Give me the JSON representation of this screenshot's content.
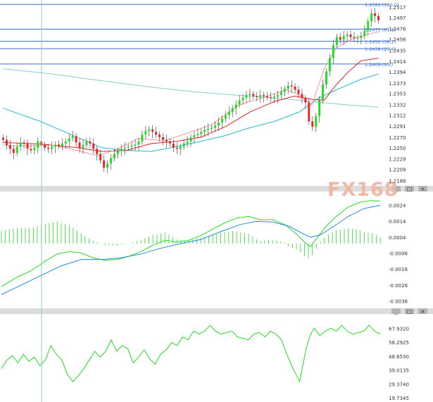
{
  "watermark": "FX168",
  "panel_buttons": [
    "_",
    "□",
    "×"
  ],
  "colors": {
    "bull": "#22dd22",
    "bear": "#ee2222",
    "fib": "#3a6fd0",
    "ma_slow": "#22bbcc",
    "ma_mid": "#dd2222",
    "ma_fast": "#ee9999",
    "ma_long": "#88cccc",
    "macd": "#22dd22",
    "signal": "#2288dd",
    "rsi": "#22dd22",
    "axis_text": "#333333",
    "separator": "#c8c8c8",
    "vline": "#88cccc"
  },
  "chart_data": [
    {
      "type": "candlestick",
      "title": "",
      "y_ticks": [
        "1.2517",
        "1.2497",
        "1.2476",
        "1.2456",
        "1.2435",
        "1.2414",
        "1.2394",
        "1.2373",
        "1.2353",
        "1.2332",
        "1.2312",
        "1.2291",
        "1.2270",
        "1.2250",
        "1.2229",
        "1.2209",
        "1.2188"
      ],
      "ylim": [
        1.2183,
        1.2525
      ],
      "fib_levels": [
        {
          "label": "1.2522 (100.0)",
          "value": 1.2522
        },
        {
          "label": "1.2475 (61.8)",
          "value": 1.2475
        },
        {
          "label": "1.2452 (38.2)",
          "value": 1.2452
        },
        {
          "label": "1.2438 (23.6)",
          "value": 1.2438
        },
        {
          "label": "1.2409 (0%)",
          "value": 1.2409
        }
      ],
      "moving_averages": [
        {
          "key": "ma_long",
          "values": [
            [
              0,
              1.24
            ],
            [
              20,
              1.239
            ],
            [
              40,
              1.2377
            ],
            [
              60,
              1.2365
            ],
            [
              80,
              1.2355
            ],
            [
              100,
              1.2348
            ],
            [
              120,
              1.234
            ],
            [
              140,
              1.2331
            ],
            [
              152,
              1.2327
            ]
          ]
        },
        {
          "key": "ma_slow",
          "values": [
            [
              0,
              1.2325
            ],
            [
              15,
              1.23
            ],
            [
              30,
              1.227
            ],
            [
              40,
              1.225
            ],
            [
              50,
              1.2245
            ],
            [
              60,
              1.2243
            ],
            [
              70,
              1.2252
            ],
            [
              80,
              1.2262
            ],
            [
              90,
              1.2273
            ],
            [
              100,
              1.2288
            ],
            [
              110,
              1.23
            ],
            [
              120,
              1.2318
            ],
            [
              128,
              1.2345
            ],
            [
              135,
              1.236
            ],
            [
              145,
              1.238
            ],
            [
              152,
              1.239
            ]
          ]
        },
        {
          "key": "ma_mid",
          "values": [
            [
              0,
              1.226
            ],
            [
              15,
              1.2257
            ],
            [
              30,
              1.225
            ],
            [
              40,
              1.2243
            ],
            [
              50,
              1.2245
            ],
            [
              60,
              1.2258
            ],
            [
              70,
              1.2262
            ],
            [
              80,
              1.227
            ],
            [
              90,
              1.229
            ],
            [
              100,
              1.2318
            ],
            [
              110,
              1.2338
            ],
            [
              118,
              1.2348
            ],
            [
              125,
              1.2342
            ],
            [
              130,
              1.234
            ],
            [
              135,
              1.237
            ],
            [
              140,
              1.2395
            ],
            [
              145,
              1.2415
            ],
            [
              152,
              1.242
            ]
          ]
        },
        {
          "key": "ma_fast",
          "values": [
            [
              0,
              1.2255
            ],
            [
              10,
              1.2253
            ],
            [
              20,
              1.2255
            ],
            [
              30,
              1.2245
            ],
            [
              38,
              1.2235
            ],
            [
              45,
              1.2245
            ],
            [
              55,
              1.2268
            ],
            [
              65,
              1.2263
            ],
            [
              75,
              1.2278
            ],
            [
              85,
              1.2295
            ],
            [
              95,
              1.233
            ],
            [
              105,
              1.2345
            ],
            [
              115,
              1.236
            ],
            [
              120,
              1.235
            ],
            [
              125,
              1.233
            ],
            [
              130,
              1.24
            ],
            [
              135,
              1.244
            ],
            [
              142,
              1.2458
            ],
            [
              152,
              1.247
            ]
          ]
        }
      ],
      "candles_close": [
        1.2265,
        1.2255,
        1.2248,
        1.224,
        1.2252,
        1.226,
        1.2258,
        1.2248,
        1.2245,
        1.225,
        1.2262,
        1.2255,
        1.225,
        1.2248,
        1.2252,
        1.2256,
        1.2253,
        1.2258,
        1.2262,
        1.2268,
        1.2272,
        1.226,
        1.225,
        1.2255,
        1.2262,
        1.2258,
        1.2248,
        1.2238,
        1.2226,
        1.2212,
        1.222,
        1.223,
        1.2238,
        1.2244,
        1.2248,
        1.225,
        1.2252,
        1.2254,
        1.2256,
        1.2262,
        1.2275,
        1.2282,
        1.2285,
        1.228,
        1.2275,
        1.227,
        1.2265,
        1.2262,
        1.2258,
        1.225,
        1.2248,
        1.2252,
        1.2258,
        1.2262,
        1.227,
        1.2274,
        1.2276,
        1.228,
        1.2284,
        1.2286,
        1.2288,
        1.2292,
        1.2298,
        1.2305,
        1.2312,
        1.2318,
        1.2325,
        1.2332,
        1.234,
        1.2345,
        1.235,
        1.2352,
        1.2348,
        1.2346,
        1.235,
        1.2348,
        1.2346,
        1.2345,
        1.2347,
        1.235,
        1.2356,
        1.2362,
        1.2368,
        1.2366,
        1.236,
        1.2352,
        1.2344,
        1.2336,
        1.23,
        1.229,
        1.231,
        1.234,
        1.237,
        1.2395,
        1.242,
        1.2445,
        1.246,
        1.2455,
        1.2462,
        1.2465,
        1.246,
        1.2458,
        1.2458,
        1.2462,
        1.2472,
        1.249,
        1.2505,
        1.25,
        1.2492
      ]
    },
    {
      "type": "line",
      "indicator": "macd",
      "y_ticks": [
        "0.0024",
        "0.0014",
        "0.0004",
        "-0.0006",
        "-0.0016",
        "-0.0026",
        "-0.0036"
      ],
      "ylim": [
        -0.0038,
        0.003
      ],
      "series": [
        {
          "key": "macd",
          "values": [
            [
              0,
              -0.0027
            ],
            [
              8,
              -0.0021
            ],
            [
              15,
              -0.0017
            ],
            [
              22,
              -0.0011
            ],
            [
              28,
              -0.00065
            ],
            [
              34,
              -0.0005
            ],
            [
              40,
              -0.0006
            ],
            [
              46,
              -0.0009
            ],
            [
              52,
              -0.00105
            ],
            [
              58,
              -0.001
            ],
            [
              64,
              -0.0008
            ],
            [
              70,
              -0.0005
            ],
            [
              76,
              -0.0001
            ],
            [
              82,
              0.0002
            ],
            [
              88,
              0.0001
            ],
            [
              94,
              0.0002
            ],
            [
              100,
              0.0005
            ],
            [
              106,
              0.0009
            ],
            [
              112,
              0.0013
            ],
            [
              118,
              0.0016
            ],
            [
              124,
              0.0017
            ],
            [
              130,
              0.0015
            ],
            [
              136,
              0.0015
            ],
            [
              142,
              0.0012
            ],
            [
              148,
              0.0006
            ],
            [
              152,
              0.0001
            ],
            [
              155,
              -0.0002
            ],
            [
              158,
              0.0003
            ],
            [
              163,
              0.0011
            ],
            [
              168,
              0.0017
            ],
            [
              174,
              0.0023
            ],
            [
              180,
              0.0026
            ],
            [
              186,
              0.0027
            ],
            [
              190,
              0.00265
            ]
          ]
        },
        {
          "key": "signal",
          "values": [
            [
              0,
              -0.0032
            ],
            [
              10,
              -0.0026
            ],
            [
              20,
              -0.002
            ],
            [
              30,
              -0.0014
            ],
            [
              40,
              -0.001
            ],
            [
              50,
              -0.001
            ],
            [
              60,
              -0.0009
            ],
            [
              70,
              -0.00065
            ],
            [
              80,
              -0.0003
            ],
            [
              90,
              0.0
            ],
            [
              100,
              0.00025
            ],
            [
              110,
              0.00075
            ],
            [
              120,
              0.0012
            ],
            [
              128,
              0.0014
            ],
            [
              136,
              0.00135
            ],
            [
              144,
              0.0011
            ],
            [
              150,
              0.0007
            ],
            [
              155,
              0.0004
            ],
            [
              160,
              0.00055
            ],
            [
              167,
              0.0011
            ],
            [
              174,
              0.0017
            ],
            [
              182,
              0.0022
            ],
            [
              190,
              0.0024
            ]
          ]
        }
      ]
    },
    {
      "type": "line",
      "indicator": "rsi",
      "y_ticks": [
        "67.9320",
        "58.2925",
        "48.6530",
        "39.0135",
        "29.3740",
        "19.7345"
      ],
      "ylim": [
        19.7345,
        75
      ],
      "series": [
        {
          "key": "rsi",
          "values": [
            [
              0,
              40
            ],
            [
              3,
              46
            ],
            [
              6,
              49
            ],
            [
              9,
              44
            ],
            [
              12,
              50
            ],
            [
              15,
              45
            ],
            [
              18,
              48
            ],
            [
              21,
              42
            ],
            [
              24,
              46
            ],
            [
              27,
              56
            ],
            [
              30,
              50
            ],
            [
              33,
              46
            ],
            [
              36,
              36
            ],
            [
              39,
              31
            ],
            [
              42,
              35
            ],
            [
              45,
              40
            ],
            [
              48,
              46
            ],
            [
              51,
              52
            ],
            [
              54,
              48
            ],
            [
              57,
              52
            ],
            [
              60,
              60
            ],
            [
              63,
              52
            ],
            [
              66,
              56
            ],
            [
              69,
              54
            ],
            [
              72,
              44
            ],
            [
              75,
              48
            ],
            [
              78,
              53
            ],
            [
              81,
              47
            ],
            [
              84,
              43
            ],
            [
              87,
              50
            ],
            [
              90,
              53
            ],
            [
              93,
              58
            ],
            [
              96,
              56
            ],
            [
              99,
              62
            ],
            [
              102,
              60
            ],
            [
              105,
              66
            ],
            [
              108,
              64
            ],
            [
              111,
              66
            ],
            [
              114,
              70
            ],
            [
              117,
              66
            ],
            [
              120,
              64
            ],
            [
              123,
              65
            ],
            [
              126,
              66
            ],
            [
              129,
              62
            ],
            [
              132,
              61
            ],
            [
              135,
              60
            ],
            [
              138,
              64
            ],
            [
              141,
              65
            ],
            [
              144,
              62
            ],
            [
              147,
              66
            ],
            [
              150,
              64
            ],
            [
              153,
              60
            ],
            [
              156,
              50
            ],
            [
              159,
              41
            ],
            [
              161,
              36
            ],
            [
              163,
              31
            ],
            [
              165,
              44
            ],
            [
              167,
              56
            ],
            [
              169,
              64
            ],
            [
              171,
              68
            ],
            [
              174,
              63
            ],
            [
              177,
              66
            ],
            [
              180,
              68
            ],
            [
              183,
              66
            ],
            [
              186,
              70
            ],
            [
              189,
              66
            ],
            [
              192,
              64
            ],
            [
              195,
              65
            ],
            [
              198,
              66
            ],
            [
              201,
              70
            ],
            [
              204,
              66
            ],
            [
              207,
              64
            ]
          ]
        }
      ]
    }
  ]
}
